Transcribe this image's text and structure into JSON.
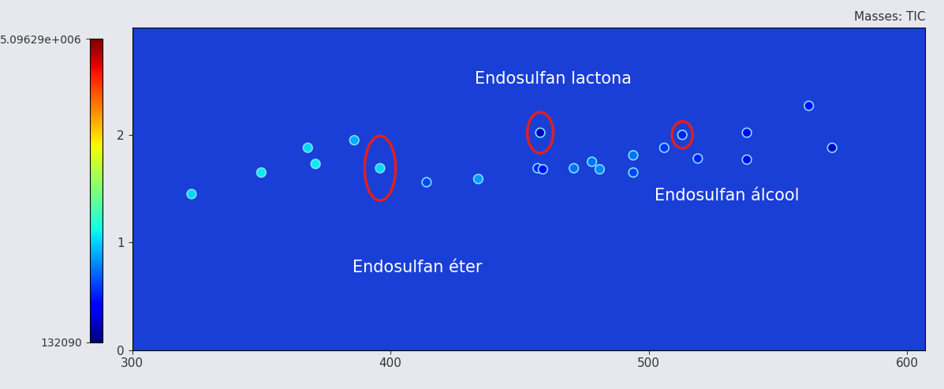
{
  "chart_data": {
    "type": "scatter",
    "title": "Masses: TIC",
    "x": [
      323,
      350,
      368,
      371,
      386,
      396,
      414,
      434,
      457,
      459,
      458,
      471,
      478,
      481,
      494,
      494,
      506,
      513,
      519,
      538,
      538,
      562,
      571
    ],
    "y": [
      1.45,
      1.65,
      1.88,
      1.73,
      1.95,
      1.69,
      1.56,
      1.59,
      1.69,
      1.68,
      2.02,
      1.69,
      1.75,
      1.68,
      1.81,
      1.65,
      1.88,
      2.0,
      1.78,
      2.02,
      1.77,
      2.27,
      1.88
    ],
    "intensity": [
      1800000,
      1900000,
      1800000,
      1900000,
      1600000,
      1800000,
      1100000,
      1500000,
      900000,
      800000,
      400000,
      1300000,
      1300000,
      1400000,
      1300000,
      1100000,
      1000000,
      900000,
      900000,
      600000,
      600000,
      800000,
      400000
    ],
    "xlim": [
      300,
      607
    ],
    "ylim": [
      0,
      3
    ],
    "xticks": [
      300,
      400,
      500,
      600
    ],
    "yticks": [
      0,
      1,
      2
    ],
    "colorbar_range": [
      132090,
      5096290
    ],
    "colorbar_ticks": [
      {
        "value": 132090,
        "label": "132090"
      },
      {
        "value": 5096290,
        "label": "5.09629e+006"
      }
    ],
    "grid": false,
    "annotations": [
      {
        "text": "Endosulfan éter",
        "x": 396,
        "y": 1.69
      },
      {
        "text": "Endosulfan lactona",
        "x": 458,
        "y": 2.02
      },
      {
        "text": "Endosulfan álcool",
        "x": 513,
        "y": 2.0
      }
    ]
  }
}
